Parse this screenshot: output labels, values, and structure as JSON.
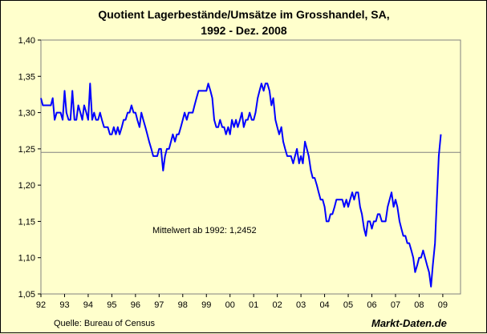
{
  "chart_data": {
    "type": "line",
    "title_lines": [
      "Quotient Lagerbestände/Umsätze im Grosshandel, SA,",
      "1992 - Dez. 2008"
    ],
    "xlabel": "",
    "ylabel": "",
    "x_range": [
      1992,
      2009.75
    ],
    "ylim": [
      1.05,
      1.4
    ],
    "y_ticks": [
      1.05,
      1.1,
      1.15,
      1.2,
      1.25,
      1.3,
      1.35,
      1.4
    ],
    "y_tick_labels": [
      "1,05",
      "1,10",
      "1,15",
      "1,20",
      "1,25",
      "1,30",
      "1,35",
      "1,40"
    ],
    "x_ticks": [
      1992,
      1993,
      1994,
      1995,
      1996,
      1997,
      1998,
      1999,
      2000,
      2001,
      2002,
      2003,
      2004,
      2005,
      2006,
      2007,
      2008,
      2009
    ],
    "x_tick_labels": [
      "92",
      "93",
      "94",
      "95",
      "96",
      "97",
      "98",
      "99",
      "00",
      "01",
      "02",
      "03",
      "04",
      "05",
      "06",
      "07",
      "08",
      "09"
    ],
    "grid": false,
    "reference_line": {
      "value": 1.2452,
      "label": "Mittelwert ab 1992: 1,2452"
    },
    "series": [
      {
        "color": "#0000ff",
        "points": [
          [
            1992.0,
            1.32
          ],
          [
            1992.08,
            1.31
          ],
          [
            1992.17,
            1.31
          ],
          [
            1992.25,
            1.31
          ],
          [
            1992.33,
            1.31
          ],
          [
            1992.42,
            1.31
          ],
          [
            1992.5,
            1.32
          ],
          [
            1992.58,
            1.29
          ],
          [
            1992.67,
            1.3
          ],
          [
            1992.75,
            1.3
          ],
          [
            1992.83,
            1.3
          ],
          [
            1992.92,
            1.29
          ],
          [
            1993.0,
            1.33
          ],
          [
            1993.08,
            1.3
          ],
          [
            1993.17,
            1.29
          ],
          [
            1993.25,
            1.29
          ],
          [
            1993.33,
            1.33
          ],
          [
            1993.42,
            1.29
          ],
          [
            1993.5,
            1.29
          ],
          [
            1993.58,
            1.31
          ],
          [
            1993.67,
            1.3
          ],
          [
            1993.75,
            1.29
          ],
          [
            1993.83,
            1.31
          ],
          [
            1993.92,
            1.3
          ],
          [
            1994.0,
            1.29
          ],
          [
            1994.08,
            1.34
          ],
          [
            1994.17,
            1.29
          ],
          [
            1994.25,
            1.3
          ],
          [
            1994.33,
            1.29
          ],
          [
            1994.42,
            1.29
          ],
          [
            1994.5,
            1.3
          ],
          [
            1994.58,
            1.29
          ],
          [
            1994.67,
            1.28
          ],
          [
            1994.75,
            1.28
          ],
          [
            1994.83,
            1.28
          ],
          [
            1994.92,
            1.27
          ],
          [
            1995.0,
            1.27
          ],
          [
            1995.08,
            1.28
          ],
          [
            1995.17,
            1.27
          ],
          [
            1995.25,
            1.28
          ],
          [
            1995.33,
            1.27
          ],
          [
            1995.42,
            1.28
          ],
          [
            1995.5,
            1.29
          ],
          [
            1995.58,
            1.29
          ],
          [
            1995.67,
            1.3
          ],
          [
            1995.75,
            1.3
          ],
          [
            1995.83,
            1.31
          ],
          [
            1995.92,
            1.3
          ],
          [
            1996.0,
            1.3
          ],
          [
            1996.08,
            1.29
          ],
          [
            1996.17,
            1.28
          ],
          [
            1996.25,
            1.3
          ],
          [
            1996.33,
            1.29
          ],
          [
            1996.42,
            1.28
          ],
          [
            1996.5,
            1.27
          ],
          [
            1996.58,
            1.26
          ],
          [
            1996.67,
            1.25
          ],
          [
            1996.75,
            1.24
          ],
          [
            1996.83,
            1.24
          ],
          [
            1996.92,
            1.24
          ],
          [
            1997.0,
            1.25
          ],
          [
            1997.08,
            1.25
          ],
          [
            1997.17,
            1.22
          ],
          [
            1997.25,
            1.24
          ],
          [
            1997.33,
            1.25
          ],
          [
            1997.42,
            1.25
          ],
          [
            1997.5,
            1.26
          ],
          [
            1997.58,
            1.27
          ],
          [
            1997.67,
            1.26
          ],
          [
            1997.75,
            1.27
          ],
          [
            1997.83,
            1.27
          ],
          [
            1997.92,
            1.28
          ],
          [
            1998.0,
            1.29
          ],
          [
            1998.08,
            1.3
          ],
          [
            1998.17,
            1.29
          ],
          [
            1998.25,
            1.3
          ],
          [
            1998.33,
            1.3
          ],
          [
            1998.42,
            1.3
          ],
          [
            1998.5,
            1.31
          ],
          [
            1998.58,
            1.32
          ],
          [
            1998.67,
            1.33
          ],
          [
            1998.75,
            1.33
          ],
          [
            1998.83,
            1.33
          ],
          [
            1998.92,
            1.33
          ],
          [
            1999.0,
            1.33
          ],
          [
            1999.08,
            1.34
          ],
          [
            1999.17,
            1.33
          ],
          [
            1999.25,
            1.32
          ],
          [
            1999.33,
            1.29
          ],
          [
            1999.42,
            1.28
          ],
          [
            1999.5,
            1.28
          ],
          [
            1999.58,
            1.29
          ],
          [
            1999.67,
            1.28
          ],
          [
            1999.75,
            1.28
          ],
          [
            1999.83,
            1.27
          ],
          [
            1999.92,
            1.28
          ],
          [
            2000.0,
            1.27
          ],
          [
            2000.08,
            1.29
          ],
          [
            2000.17,
            1.28
          ],
          [
            2000.25,
            1.29
          ],
          [
            2000.33,
            1.28
          ],
          [
            2000.42,
            1.29
          ],
          [
            2000.5,
            1.3
          ],
          [
            2000.58,
            1.28
          ],
          [
            2000.67,
            1.29
          ],
          [
            2000.75,
            1.29
          ],
          [
            2000.83,
            1.3
          ],
          [
            2000.92,
            1.29
          ],
          [
            2001.0,
            1.29
          ],
          [
            2001.08,
            1.3
          ],
          [
            2001.17,
            1.32
          ],
          [
            2001.25,
            1.33
          ],
          [
            2001.33,
            1.34
          ],
          [
            2001.42,
            1.33
          ],
          [
            2001.5,
            1.34
          ],
          [
            2001.58,
            1.34
          ],
          [
            2001.67,
            1.33
          ],
          [
            2001.75,
            1.31
          ],
          [
            2001.83,
            1.32
          ],
          [
            2001.92,
            1.29
          ],
          [
            2002.0,
            1.28
          ],
          [
            2002.08,
            1.27
          ],
          [
            2002.17,
            1.28
          ],
          [
            2002.25,
            1.26
          ],
          [
            2002.33,
            1.25
          ],
          [
            2002.42,
            1.24
          ],
          [
            2002.5,
            1.24
          ],
          [
            2002.58,
            1.24
          ],
          [
            2002.67,
            1.23
          ],
          [
            2002.75,
            1.24
          ],
          [
            2002.83,
            1.25
          ],
          [
            2002.92,
            1.23
          ],
          [
            2003.0,
            1.24
          ],
          [
            2003.08,
            1.23
          ],
          [
            2003.17,
            1.26
          ],
          [
            2003.25,
            1.25
          ],
          [
            2003.33,
            1.24
          ],
          [
            2003.42,
            1.22
          ],
          [
            2003.5,
            1.21
          ],
          [
            2003.58,
            1.21
          ],
          [
            2003.67,
            1.2
          ],
          [
            2003.75,
            1.19
          ],
          [
            2003.83,
            1.18
          ],
          [
            2003.92,
            1.18
          ],
          [
            2004.0,
            1.17
          ],
          [
            2004.08,
            1.15
          ],
          [
            2004.17,
            1.15
          ],
          [
            2004.25,
            1.16
          ],
          [
            2004.33,
            1.16
          ],
          [
            2004.42,
            1.17
          ],
          [
            2004.5,
            1.18
          ],
          [
            2004.58,
            1.18
          ],
          [
            2004.67,
            1.18
          ],
          [
            2004.75,
            1.18
          ],
          [
            2004.83,
            1.17
          ],
          [
            2004.92,
            1.18
          ],
          [
            2005.0,
            1.17
          ],
          [
            2005.08,
            1.18
          ],
          [
            2005.17,
            1.19
          ],
          [
            2005.25,
            1.18
          ],
          [
            2005.33,
            1.19
          ],
          [
            2005.42,
            1.19
          ],
          [
            2005.5,
            1.17
          ],
          [
            2005.58,
            1.16
          ],
          [
            2005.67,
            1.14
          ],
          [
            2005.75,
            1.13
          ],
          [
            2005.83,
            1.15
          ],
          [
            2005.92,
            1.15
          ],
          [
            2006.0,
            1.14
          ],
          [
            2006.08,
            1.15
          ],
          [
            2006.17,
            1.15
          ],
          [
            2006.25,
            1.16
          ],
          [
            2006.33,
            1.16
          ],
          [
            2006.42,
            1.15
          ],
          [
            2006.5,
            1.15
          ],
          [
            2006.58,
            1.15
          ],
          [
            2006.67,
            1.17
          ],
          [
            2006.75,
            1.18
          ],
          [
            2006.83,
            1.19
          ],
          [
            2006.92,
            1.17
          ],
          [
            2007.0,
            1.18
          ],
          [
            2007.08,
            1.17
          ],
          [
            2007.17,
            1.15
          ],
          [
            2007.25,
            1.14
          ],
          [
            2007.33,
            1.13
          ],
          [
            2007.42,
            1.13
          ],
          [
            2007.5,
            1.12
          ],
          [
            2007.58,
            1.12
          ],
          [
            2007.67,
            1.11
          ],
          [
            2007.75,
            1.1
          ],
          [
            2007.83,
            1.08
          ],
          [
            2007.92,
            1.09
          ],
          [
            2008.0,
            1.1
          ],
          [
            2008.08,
            1.1
          ],
          [
            2008.17,
            1.11
          ],
          [
            2008.25,
            1.1
          ],
          [
            2008.33,
            1.09
          ],
          [
            2008.42,
            1.08
          ],
          [
            2008.5,
            1.06
          ],
          [
            2008.58,
            1.09
          ],
          [
            2008.67,
            1.12
          ],
          [
            2008.75,
            1.18
          ],
          [
            2008.83,
            1.24
          ],
          [
            2008.92,
            1.27
          ]
        ]
      }
    ]
  },
  "footer": {
    "source": "Quelle: Bureau of Census",
    "brand": "Markt-Daten.de"
  }
}
